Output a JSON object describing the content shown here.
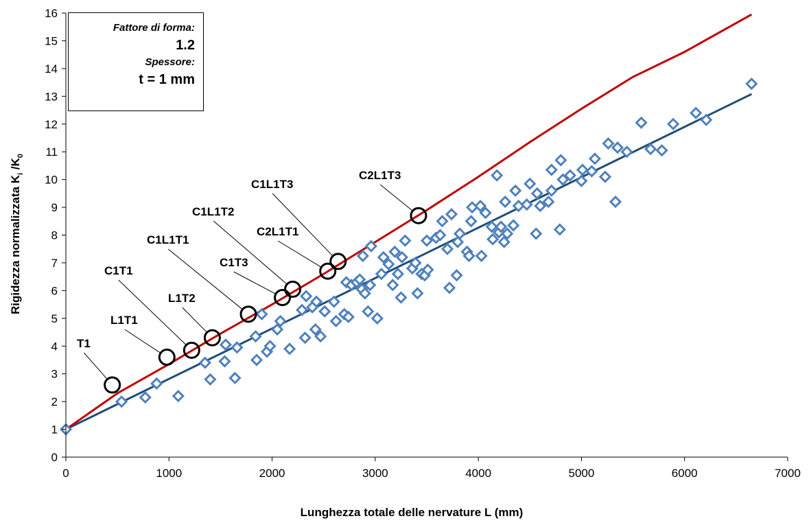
{
  "chart_data": {
    "type": "scatter",
    "xlabel": "Lunghezza totale delle nervature L (mm)",
    "ylabel_main": "Rigidezza normalizzata K",
    "ylabel_sub_i": "i",
    "ylabel_mid": " /K",
    "ylabel_sub_0": "0",
    "xlim": [
      0,
      7000
    ],
    "ylim": [
      0,
      16
    ],
    "xticks": [
      0,
      1000,
      2000,
      3000,
      4000,
      5000,
      6000,
      7000
    ],
    "yticks": [
      0,
      1,
      2,
      3,
      4,
      5,
      6,
      7,
      8,
      9,
      10,
      11,
      12,
      13,
      14,
      15,
      16
    ],
    "grid": false,
    "colors": {
      "markers": "#4f81bd",
      "fit_line": "#1f4e79",
      "upper_line": "#c00000",
      "circle": "#000000"
    },
    "series": [
      {
        "kind": "scatter-diamond",
        "points": [
          [
            0,
            1
          ],
          [
            540,
            2
          ],
          [
            770,
            2.15
          ],
          [
            880,
            2.65
          ],
          [
            1090,
            2.2
          ],
          [
            1350,
            3.4
          ],
          [
            1400,
            2.8
          ],
          [
            1540,
            3.45
          ],
          [
            1550,
            4.05
          ],
          [
            1640,
            2.85
          ],
          [
            1660,
            3.95
          ],
          [
            1840,
            4.35
          ],
          [
            1850,
            3.5
          ],
          [
            1900,
            5.15
          ],
          [
            1950,
            3.8
          ],
          [
            1980,
            4
          ],
          [
            2050,
            4.6
          ],
          [
            2080,
            4.9
          ],
          [
            2170,
            3.9
          ],
          [
            2290,
            5.3
          ],
          [
            2320,
            4.3
          ],
          [
            2330,
            5.8
          ],
          [
            2390,
            5.4
          ],
          [
            2420,
            4.6
          ],
          [
            2430,
            5.6
          ],
          [
            2470,
            4.35
          ],
          [
            2510,
            5.25
          ],
          [
            2600,
            5.6
          ],
          [
            2620,
            4.9
          ],
          [
            2700,
            5.15
          ],
          [
            2720,
            6.3
          ],
          [
            2740,
            5.05
          ],
          [
            2770,
            6.2
          ],
          [
            2820,
            6.3
          ],
          [
            2850,
            6.4
          ],
          [
            2870,
            6.05
          ],
          [
            2880,
            7.25
          ],
          [
            2900,
            5.9
          ],
          [
            2930,
            5.25
          ],
          [
            2950,
            6.2
          ],
          [
            2960,
            7.6
          ],
          [
            3020,
            5
          ],
          [
            3060,
            6.6
          ],
          [
            3080,
            7.2
          ],
          [
            3130,
            6.95
          ],
          [
            3170,
            6.2
          ],
          [
            3190,
            7.4
          ],
          [
            3220,
            6.6
          ],
          [
            3250,
            5.75
          ],
          [
            3260,
            7.2
          ],
          [
            3290,
            7.8
          ],
          [
            3360,
            6.8
          ],
          [
            3390,
            7
          ],
          [
            3410,
            5.9
          ],
          [
            3450,
            6.6
          ],
          [
            3480,
            6.55
          ],
          [
            3500,
            7.8
          ],
          [
            3510,
            6.75
          ],
          [
            3590,
            7.9
          ],
          [
            3630,
            8
          ],
          [
            3650,
            8.5
          ],
          [
            3700,
            7.5
          ],
          [
            3720,
            6.1
          ],
          [
            3740,
            8.75
          ],
          [
            3790,
            6.55
          ],
          [
            3800,
            7.75
          ],
          [
            3820,
            8.05
          ],
          [
            3890,
            7.4
          ],
          [
            3910,
            7.25
          ],
          [
            3930,
            8.5
          ],
          [
            3940,
            9
          ],
          [
            4020,
            9.05
          ],
          [
            4030,
            7.25
          ],
          [
            4070,
            8.8
          ],
          [
            4130,
            8.3
          ],
          [
            4140,
            7.85
          ],
          [
            4180,
            10.15
          ],
          [
            4200,
            8.1
          ],
          [
            4220,
            8.3
          ],
          [
            4250,
            7.75
          ],
          [
            4260,
            9.2
          ],
          [
            4280,
            8.05
          ],
          [
            4340,
            8.35
          ],
          [
            4360,
            9.6
          ],
          [
            4390,
            9.05
          ],
          [
            4470,
            9.1
          ],
          [
            4500,
            9.85
          ],
          [
            4560,
            8.05
          ],
          [
            4570,
            9.5
          ],
          [
            4600,
            9.05
          ],
          [
            4680,
            9.2
          ],
          [
            4710,
            10.35
          ],
          [
            4710,
            9.6
          ],
          [
            4790,
            8.2
          ],
          [
            4800,
            10.7
          ],
          [
            4820,
            10
          ],
          [
            4890,
            10.15
          ],
          [
            5000,
            9.95
          ],
          [
            5010,
            10.35
          ],
          [
            5100,
            10.3
          ],
          [
            5130,
            10.75
          ],
          [
            5230,
            10.1
          ],
          [
            5260,
            11.3
          ],
          [
            5330,
            9.2
          ],
          [
            5350,
            11.15
          ],
          [
            5440,
            11
          ],
          [
            5580,
            12.05
          ],
          [
            5670,
            11.1
          ],
          [
            5780,
            11.05
          ],
          [
            5890,
            12
          ],
          [
            6110,
            12.4
          ],
          [
            6210,
            12.15
          ],
          [
            6650,
            13.45
          ]
        ]
      },
      {
        "kind": "fit-line",
        "x": [
          0,
          6650
        ],
        "y": [
          1,
          13.08
        ]
      },
      {
        "kind": "upper-line",
        "x": [
          0,
          500,
          1000,
          1500,
          2000,
          2500,
          3000,
          3500,
          4000,
          4500,
          5000,
          5500,
          6000,
          6650
        ],
        "y": [
          1,
          2.3,
          3.35,
          4.45,
          5.5,
          6.6,
          7.75,
          8.9,
          10.1,
          11.35,
          12.55,
          13.7,
          14.6,
          15.95
        ]
      }
    ],
    "annotations": [
      {
        "name": "T1",
        "x": 450,
        "y": 2.6
      },
      {
        "name": "L1T1",
        "x": 980,
        "y": 3.6
      },
      {
        "name": "C1T1",
        "x": 1220,
        "y": 3.85
      },
      {
        "name": "L1T2",
        "x": 1420,
        "y": 4.3
      },
      {
        "name": "C1L1T1",
        "x": 1770,
        "y": 5.15
      },
      {
        "name": "C1T3",
        "x": 2100,
        "y": 5.75
      },
      {
        "name": "C1L1T2",
        "x": 2200,
        "y": 6.05
      },
      {
        "name": "C2L1T1",
        "x": 2540,
        "y": 6.7
      },
      {
        "name": "C1L1T3",
        "x": 2640,
        "y": 7.05
      },
      {
        "name": "C2L1T3",
        "x": 3420,
        "y": 8.7
      }
    ]
  },
  "infobox": {
    "shape_label": "Fattore di forma:",
    "shape_value": "1.2",
    "thickness_label": "Spessore:",
    "thickness_value": "t = 1 mm"
  }
}
